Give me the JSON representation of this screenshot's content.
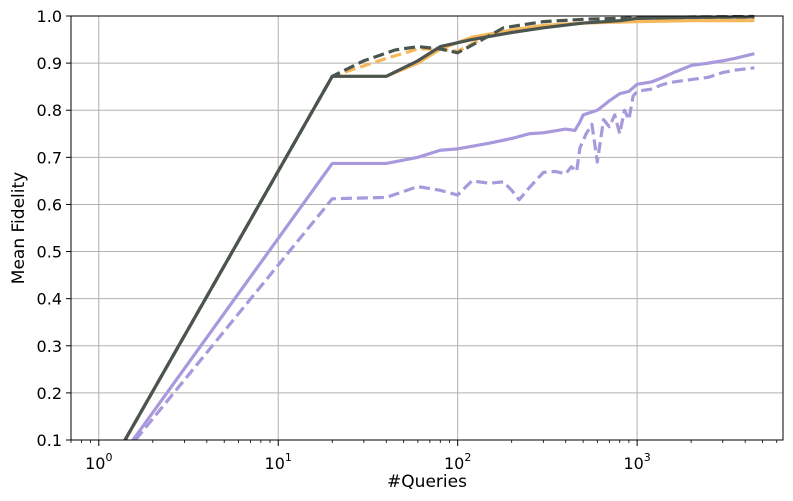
{
  "chart_data": {
    "type": "line",
    "title": "",
    "xlabel": "#Queries",
    "ylabel": "Mean Fidelity",
    "xscale": "log",
    "xlim": [
      0.7,
      6500
    ],
    "ylim": [
      0.1,
      1.0
    ],
    "grid": true,
    "legend": "none",
    "x_ticks": [
      {
        "value": 1,
        "base": "10",
        "exp": "0"
      },
      {
        "value": 10,
        "base": "10",
        "exp": "1"
      },
      {
        "value": 100,
        "base": "10",
        "exp": "2"
      },
      {
        "value": 1000,
        "base": "10",
        "exp": "3"
      }
    ],
    "y_ticks": [
      {
        "value": 0.1,
        "label": "0.1"
      },
      {
        "value": 0.2,
        "label": "0.2"
      },
      {
        "value": 0.3,
        "label": "0.3"
      },
      {
        "value": 0.4,
        "label": "0.4"
      },
      {
        "value": 0.5,
        "label": "0.5"
      },
      {
        "value": 0.6,
        "label": "0.6"
      },
      {
        "value": 0.7,
        "label": "0.7"
      },
      {
        "value": 0.8,
        "label": "0.8"
      },
      {
        "value": 0.9,
        "label": "0.9"
      },
      {
        "value": 1.0,
        "label": "1.0"
      }
    ],
    "series": [
      {
        "color": "#f5b85a",
        "dash": "solid",
        "width": 3.2,
        "points": [
          [
            1.4,
            0.1
          ],
          [
            20,
            0.872
          ],
          [
            40,
            0.872
          ],
          [
            60,
            0.9
          ],
          [
            80,
            0.93
          ],
          [
            120,
            0.955
          ],
          [
            200,
            0.97
          ],
          [
            300,
            0.98
          ],
          [
            500,
            0.985
          ],
          [
            1000,
            0.988
          ],
          [
            2000,
            0.99
          ],
          [
            4500,
            0.99
          ]
        ]
      },
      {
        "color": "#f5b85a",
        "dash": "dashed",
        "width": 3.2,
        "points": [
          [
            1.4,
            0.1
          ],
          [
            20,
            0.872
          ],
          [
            40,
            0.91
          ],
          [
            60,
            0.93
          ],
          [
            80,
            0.93
          ],
          [
            100,
            0.925
          ],
          [
            150,
            0.96
          ],
          [
            200,
            0.97
          ],
          [
            300,
            0.98
          ],
          [
            500,
            0.985
          ],
          [
            1000,
            0.99
          ],
          [
            2000,
            0.993
          ],
          [
            4500,
            0.995
          ]
        ]
      },
      {
        "color": "#4a5550",
        "dash": "solid",
        "width": 3.2,
        "points": [
          [
            1.4,
            0.1
          ],
          [
            20,
            0.872
          ],
          [
            40,
            0.872
          ],
          [
            60,
            0.905
          ],
          [
            80,
            0.935
          ],
          [
            120,
            0.95
          ],
          [
            200,
            0.965
          ],
          [
            300,
            0.975
          ],
          [
            500,
            0.985
          ],
          [
            800,
            0.99
          ],
          [
            1000,
            0.995
          ],
          [
            2000,
            0.997
          ],
          [
            4500,
            0.998
          ]
        ]
      },
      {
        "color": "#4a5550",
        "dash": "dashed",
        "width": 3.2,
        "points": [
          [
            1.4,
            0.1
          ],
          [
            20,
            0.872
          ],
          [
            30,
            0.905
          ],
          [
            45,
            0.928
          ],
          [
            60,
            0.935
          ],
          [
            80,
            0.93
          ],
          [
            100,
            0.922
          ],
          [
            130,
            0.945
          ],
          [
            180,
            0.975
          ],
          [
            300,
            0.988
          ],
          [
            500,
            0.993
          ],
          [
            1000,
            0.996
          ],
          [
            2000,
            0.998
          ],
          [
            4500,
            0.999
          ]
        ]
      },
      {
        "color": "#a899dc",
        "dash": "solid",
        "width": 3.2,
        "points": [
          [
            1.55,
            0.1
          ],
          [
            20,
            0.687
          ],
          [
            40,
            0.687
          ],
          [
            60,
            0.7
          ],
          [
            80,
            0.715
          ],
          [
            100,
            0.718
          ],
          [
            150,
            0.73
          ],
          [
            200,
            0.74
          ],
          [
            250,
            0.75
          ],
          [
            300,
            0.752
          ],
          [
            400,
            0.76
          ],
          [
            450,
            0.757
          ],
          [
            480,
            0.775
          ],
          [
            500,
            0.79
          ],
          [
            600,
            0.8
          ],
          [
            650,
            0.81
          ],
          [
            700,
            0.82
          ],
          [
            800,
            0.835
          ],
          [
            900,
            0.84
          ],
          [
            1000,
            0.855
          ],
          [
            1200,
            0.86
          ],
          [
            1400,
            0.87
          ],
          [
            1600,
            0.88
          ],
          [
            2000,
            0.895
          ],
          [
            2500,
            0.9
          ],
          [
            3000,
            0.905
          ],
          [
            3500,
            0.91
          ],
          [
            4500,
            0.92
          ]
        ]
      },
      {
        "color": "#a899dc",
        "dash": "dashed",
        "width": 3.2,
        "points": [
          [
            1.6,
            0.1
          ],
          [
            20,
            0.612
          ],
          [
            40,
            0.615
          ],
          [
            60,
            0.638
          ],
          [
            80,
            0.63
          ],
          [
            100,
            0.62
          ],
          [
            120,
            0.65
          ],
          [
            150,
            0.645
          ],
          [
            180,
            0.648
          ],
          [
            200,
            0.63
          ],
          [
            220,
            0.61
          ],
          [
            250,
            0.635
          ],
          [
            300,
            0.668
          ],
          [
            350,
            0.67
          ],
          [
            400,
            0.665
          ],
          [
            430,
            0.68
          ],
          [
            460,
            0.67
          ],
          [
            480,
            0.72
          ],
          [
            520,
            0.75
          ],
          [
            560,
            0.77
          ],
          [
            600,
            0.69
          ],
          [
            650,
            0.78
          ],
          [
            700,
            0.765
          ],
          [
            750,
            0.79
          ],
          [
            800,
            0.75
          ],
          [
            850,
            0.8
          ],
          [
            900,
            0.78
          ],
          [
            950,
            0.83
          ],
          [
            1000,
            0.84
          ],
          [
            1200,
            0.845
          ],
          [
            1400,
            0.855
          ],
          [
            1600,
            0.86
          ],
          [
            2000,
            0.865
          ],
          [
            2500,
            0.87
          ],
          [
            3000,
            0.88
          ],
          [
            3500,
            0.885
          ],
          [
            4500,
            0.89
          ]
        ]
      }
    ]
  }
}
